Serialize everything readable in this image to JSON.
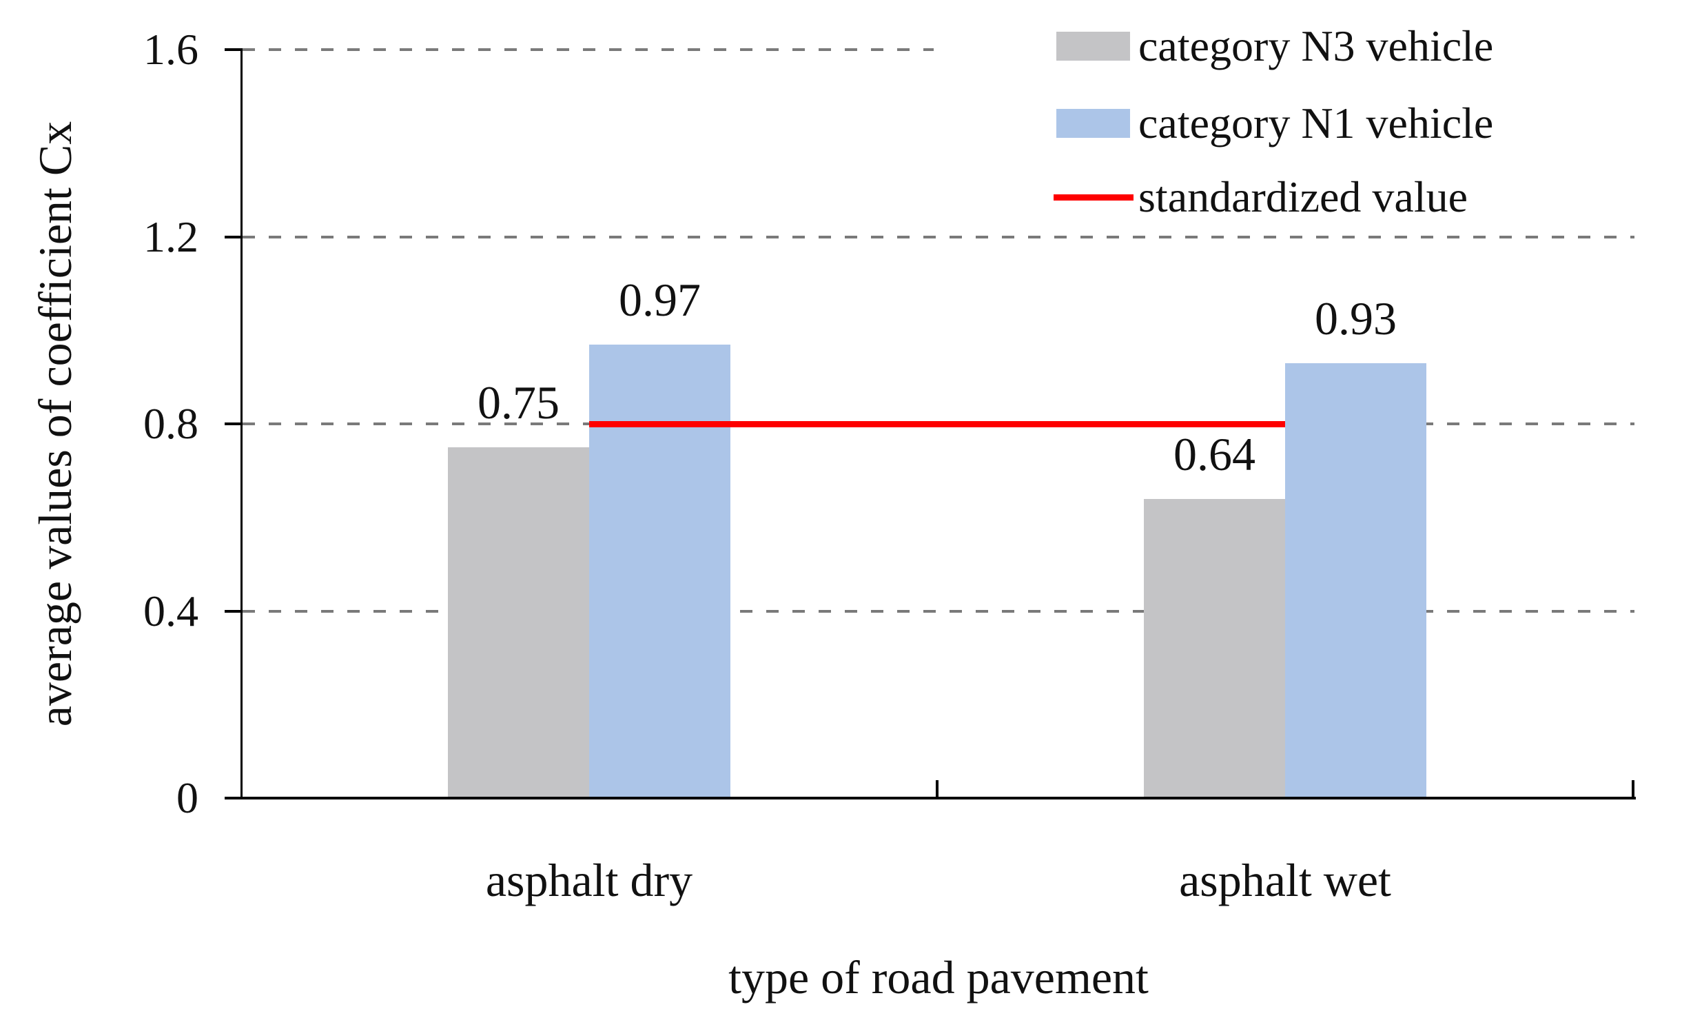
{
  "chart_data": {
    "type": "bar",
    "title": "",
    "categories": [
      "asphalt dry",
      "asphalt wet"
    ],
    "series": [
      {
        "name": "category N3 vehicle",
        "color": "#c4c4c6",
        "values": [
          0.75,
          0.64
        ],
        "labels": [
          "0.75",
          "0.64"
        ]
      },
      {
        "name": "category N1 vehicle",
        "color": "#acc5e8",
        "values": [
          0.97,
          0.93
        ],
        "labels": [
          "0.97",
          "0.93"
        ]
      }
    ],
    "reference_line": {
      "name": "standardized value",
      "value": 0.8,
      "color": "#fe0000"
    },
    "xlabel": "type of road pavement",
    "ylabel": "average values of coefficient Cx",
    "ylim": [
      0,
      1.6
    ],
    "yticks": [
      0,
      0.4,
      0.8,
      1.2,
      1.6
    ],
    "ytick_labels": [
      "0",
      "0.4",
      "0.8",
      "1.2",
      "1.6"
    ],
    "grid": "horizontal-dashed",
    "gridline_color": "#7a7a7a",
    "legend_position": "top-right",
    "data_labels": true
  }
}
